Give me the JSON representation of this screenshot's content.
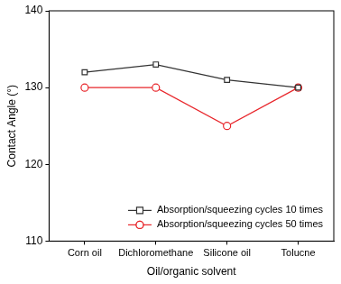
{
  "chart_data": {
    "type": "line",
    "x_label": "Oil/organic solvent",
    "y_label": "Contact Angle (°)",
    "categories": [
      "Corn oil",
      "Dichloromethane",
      "Silicone oil",
      "Tolucne"
    ],
    "series": [
      {
        "name": "Absorption/squeezing cycles 10 times",
        "color": "#333333",
        "marker": "square",
        "values": [
          132,
          133,
          131,
          130
        ]
      },
      {
        "name": "Absorption/squeezing cycles 50 times",
        "color": "#e8262b",
        "marker": "circle",
        "values": [
          130,
          130,
          125,
          130
        ]
      }
    ],
    "ylim": [
      110,
      140
    ],
    "yticks": [
      110,
      120,
      130,
      140
    ],
    "grid": false,
    "legend": "lower right"
  }
}
